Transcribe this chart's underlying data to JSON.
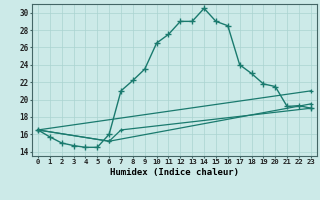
{
  "xlabel": "Humidex (Indice chaleur)",
  "bg_color": "#cceae8",
  "line_color": "#1a7a6e",
  "grid_color": "#aad4d0",
  "xlim": [
    -0.5,
    23.5
  ],
  "ylim": [
    13.5,
    31.0
  ],
  "xticks": [
    0,
    1,
    2,
    3,
    4,
    5,
    6,
    7,
    8,
    9,
    10,
    11,
    12,
    13,
    14,
    15,
    16,
    17,
    18,
    19,
    20,
    21,
    22,
    23
  ],
  "yticks": [
    14,
    16,
    18,
    20,
    22,
    24,
    26,
    28,
    30
  ],
  "series1_x": [
    0,
    1,
    2,
    3,
    4,
    5,
    6,
    7,
    8,
    9,
    10,
    11,
    12,
    13,
    14,
    15,
    16,
    17,
    18,
    19,
    20,
    21,
    22,
    23
  ],
  "series1_y": [
    16.5,
    15.7,
    15.0,
    14.7,
    14.5,
    14.5,
    16.0,
    21.0,
    22.2,
    23.5,
    26.5,
    27.5,
    29.0,
    29.0,
    30.5,
    29.0,
    28.5,
    24.0,
    23.0,
    21.8,
    21.5,
    19.2,
    19.3,
    19.0
  ],
  "series2_x": [
    0,
    23
  ],
  "series2_y": [
    16.5,
    21.0
  ],
  "series3_x": [
    0,
    6,
    23
  ],
  "series3_y": [
    16.5,
    15.2,
    19.5
  ],
  "series4_x": [
    0,
    6,
    7,
    23
  ],
  "series4_y": [
    16.5,
    15.2,
    16.5,
    19.0
  ]
}
